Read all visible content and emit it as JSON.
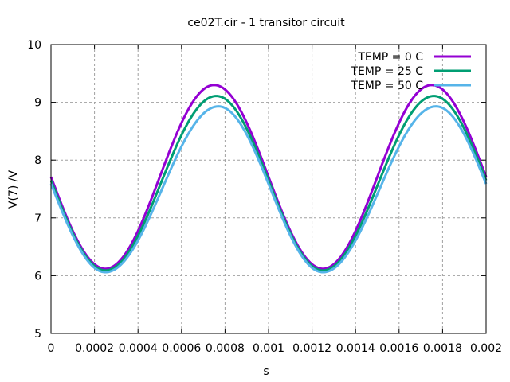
{
  "chart_data": {
    "type": "line",
    "title": "ce02T.cir - 1 transitor circuit",
    "xlabel": "s",
    "ylabel": "V(7) /V",
    "xlim": [
      0,
      0.002
    ],
    "ylim": [
      5,
      10
    ],
    "xticks": [
      "0",
      "0.0002",
      "0.0004",
      "0.0006",
      "0.0008",
      "0.001",
      "0.0012",
      "0.0014",
      "0.0016",
      "0.0018",
      "0.002"
    ],
    "yticks": [
      "5",
      "6",
      "7",
      "8",
      "9",
      "10"
    ],
    "grid": true,
    "legend_position": "top-right",
    "period": 0.001,
    "series": [
      {
        "name": "TEMP = 0 C",
        "color": "#9400d3",
        "x_min": 0.00025,
        "y_min": 6.12,
        "x_max": 0.00075,
        "y_max": 9.3
      },
      {
        "name": "TEMP = 25 C",
        "color": "#009e73",
        "x_min": 0.00025,
        "y_min": 6.09,
        "x_max": 0.00076,
        "y_max": 9.11
      },
      {
        "name": "TEMP = 50 C",
        "color": "#56b4e9",
        "x_min": 0.00025,
        "y_min": 6.06,
        "x_max": 0.00077,
        "y_max": 8.93
      }
    ]
  }
}
